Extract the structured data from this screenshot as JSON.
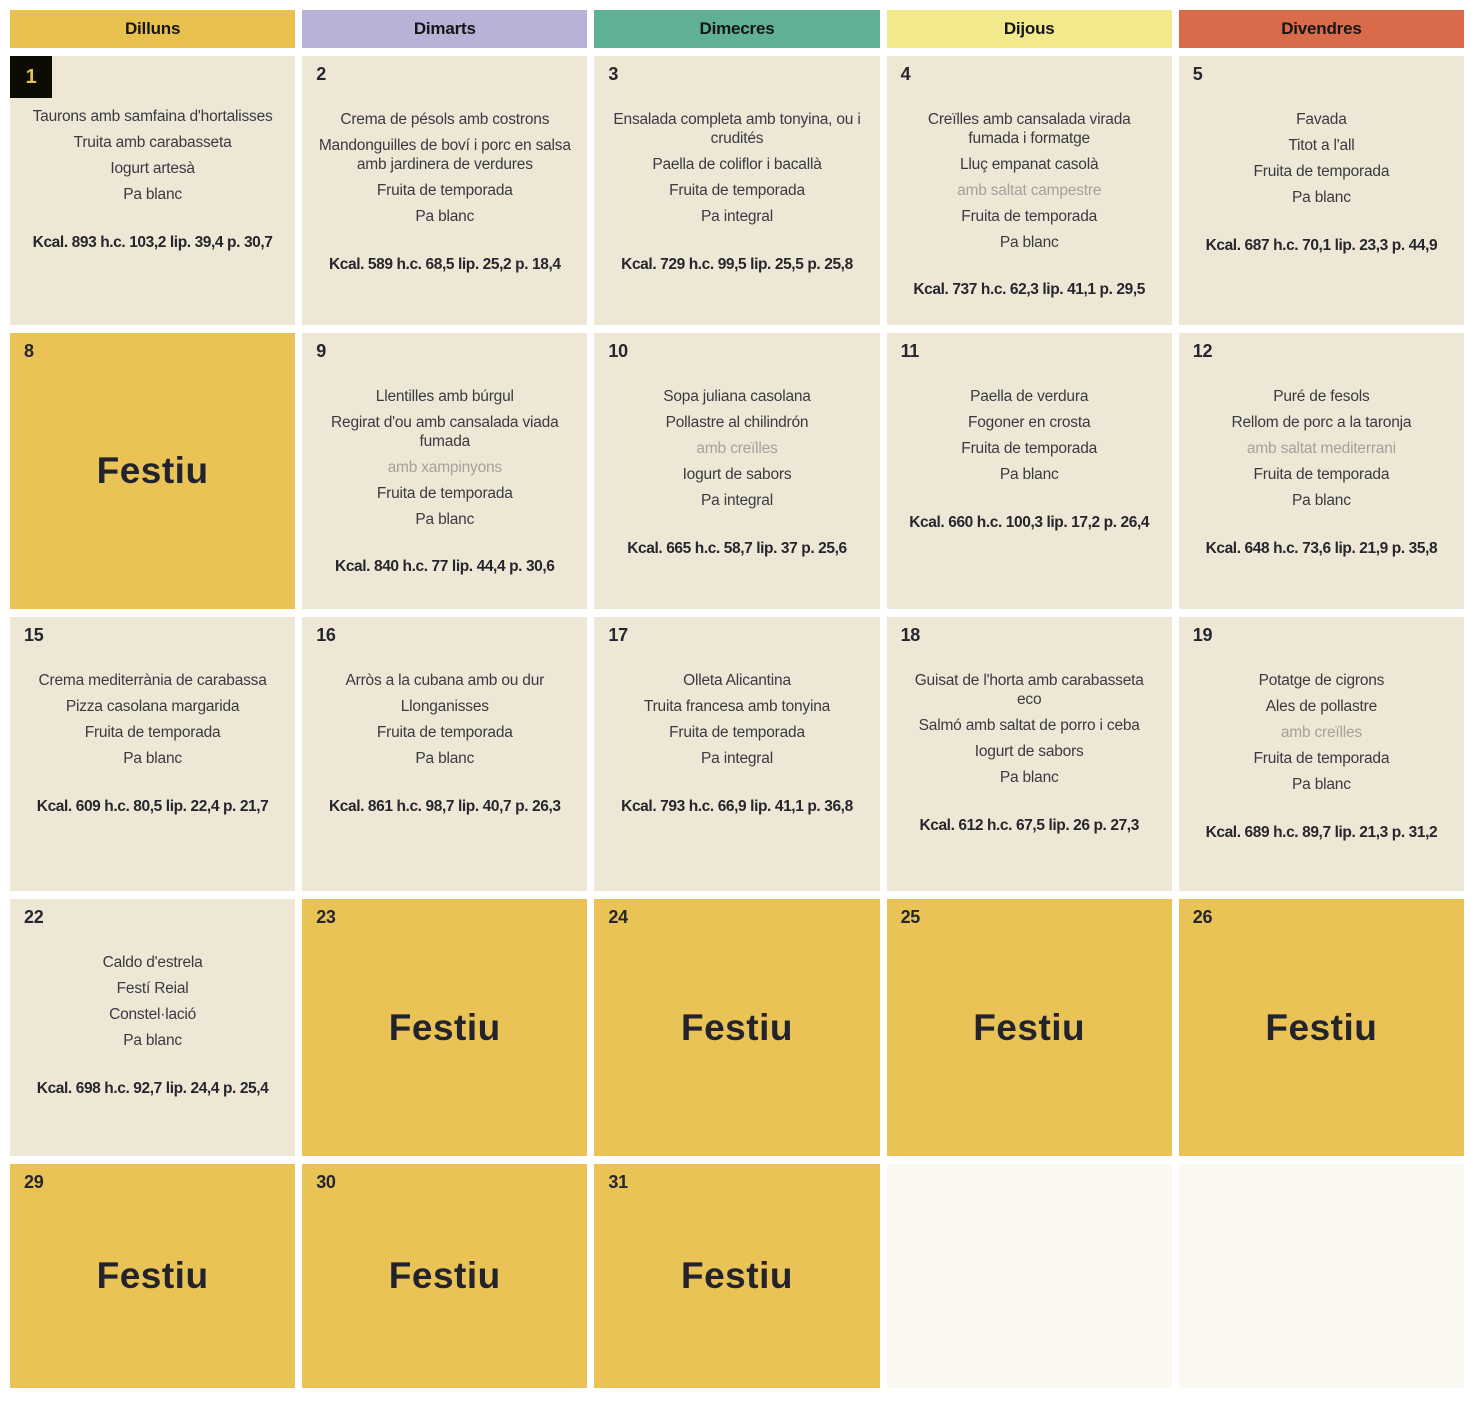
{
  "festiu_label": "Festiu",
  "colors": {
    "menu_cell_bg": "#eee7d6",
    "empty_cell_bg": "#faf8f1",
    "festiu_cell_bg": "#e9c355",
    "badge_bg": "#0c0c04",
    "badge_fg": "#e8c04e",
    "muted_text": "#a5a19b"
  },
  "weekdays": [
    {
      "id": "dilluns",
      "label": "Dilluns",
      "color": "#e8c04e"
    },
    {
      "id": "dimarts",
      "label": "Dimarts",
      "color": "#b9b2d8"
    },
    {
      "id": "dimecres",
      "label": "Dimecres",
      "color": "#5fb094"
    },
    {
      "id": "dijous",
      "label": "Dijous",
      "color": "#f2e88c"
    },
    {
      "id": "divendres",
      "label": "Divendres",
      "color": "#d96b4b"
    }
  ],
  "weeks": [
    [
      {
        "type": "menu",
        "day": "1",
        "day_badge": true,
        "items": [
          {
            "text": "Taurons amb samfaina d'hortalisses",
            "muted": false
          },
          {
            "text": "Truita amb carabasseta",
            "muted": false
          },
          {
            "text": "Iogurt artesà",
            "muted": false
          },
          {
            "text": "Pa blanc",
            "muted": false
          }
        ],
        "kcal": "Kcal. 893 h.c. 103,2 lip. 39,4 p. 30,7"
      },
      {
        "type": "menu",
        "day": "2",
        "day_badge": false,
        "items": [
          {
            "text": "Crema de pésols amb costrons",
            "muted": false
          },
          {
            "text": "Mandonguilles de boví i porc en salsa amb jardinera de verdures",
            "muted": false
          },
          {
            "text": "Fruita de temporada",
            "muted": false
          },
          {
            "text": "Pa blanc",
            "muted": false
          }
        ],
        "kcal": "Kcal. 589 h.c. 68,5 lip. 25,2 p. 18,4"
      },
      {
        "type": "menu",
        "day": "3",
        "day_badge": false,
        "items": [
          {
            "text": "Ensalada completa amb tonyina, ou i crudités",
            "muted": false
          },
          {
            "text": "Paella de coliflor i bacallà",
            "muted": false
          },
          {
            "text": "Fruita de temporada",
            "muted": false
          },
          {
            "text": "Pa integral",
            "muted": false
          }
        ],
        "kcal": "Kcal. 729 h.c. 99,5 lip. 25,5 p. 25,8"
      },
      {
        "type": "menu",
        "day": "4",
        "day_badge": false,
        "items": [
          {
            "text": "Creïlles amb cansalada virada fumada i formatge",
            "muted": false
          },
          {
            "text": "Lluç empanat casolà",
            "muted": false
          },
          {
            "text": "amb saltat campestre",
            "muted": true
          },
          {
            "text": "Fruita de temporada",
            "muted": false
          },
          {
            "text": "Pa blanc",
            "muted": false
          }
        ],
        "kcal": "Kcal. 737 h.c. 62,3 lip. 41,1 p. 29,5"
      },
      {
        "type": "menu",
        "day": "5",
        "day_badge": false,
        "items": [
          {
            "text": "Favada",
            "muted": false
          },
          {
            "text": "Titot a l'all",
            "muted": false
          },
          {
            "text": "Fruita de temporada",
            "muted": false
          },
          {
            "text": "Pa blanc",
            "muted": false
          }
        ],
        "kcal": "Kcal. 687 h.c. 70,1 lip. 23,3 p. 44,9"
      }
    ],
    [
      {
        "type": "festiu",
        "day": "8"
      },
      {
        "type": "menu",
        "day": "9",
        "day_badge": false,
        "items": [
          {
            "text": "Llentilles amb búrgul",
            "muted": false
          },
          {
            "text": "Regirat d'ou amb cansalada viada fumada",
            "muted": false
          },
          {
            "text": "amb xampinyons",
            "muted": true
          },
          {
            "text": "Fruita de temporada",
            "muted": false
          },
          {
            "text": "Pa blanc",
            "muted": false
          }
        ],
        "kcal": "Kcal. 840 h.c. 77 lip. 44,4 p. 30,6"
      },
      {
        "type": "menu",
        "day": "10",
        "day_badge": false,
        "items": [
          {
            "text": "Sopa juliana casolana",
            "muted": false
          },
          {
            "text": "Pollastre al chilindrón",
            "muted": false
          },
          {
            "text": "amb creïlles",
            "muted": true
          },
          {
            "text": "Iogurt de sabors",
            "muted": false
          },
          {
            "text": "Pa integral",
            "muted": false
          }
        ],
        "kcal": "Kcal. 665 h.c. 58,7 lip. 37 p. 25,6"
      },
      {
        "type": "menu",
        "day": "11",
        "day_badge": false,
        "items": [
          {
            "text": "Paella de verdura",
            "muted": false
          },
          {
            "text": "Fogoner en crosta",
            "muted": false
          },
          {
            "text": "Fruita de temporada",
            "muted": false
          },
          {
            "text": "Pa blanc",
            "muted": false
          }
        ],
        "kcal": "Kcal. 660 h.c. 100,3 lip. 17,2 p. 26,4"
      },
      {
        "type": "menu",
        "day": "12",
        "day_badge": false,
        "items": [
          {
            "text": "Puré de fesols",
            "muted": false
          },
          {
            "text": "Rellom de porc a la taronja",
            "muted": false
          },
          {
            "text": "amb saltat mediterrani",
            "muted": true
          },
          {
            "text": "Fruita de temporada",
            "muted": false
          },
          {
            "text": "Pa blanc",
            "muted": false
          }
        ],
        "kcal": "Kcal. 648 h.c. 73,6 lip. 21,9 p. 35,8"
      }
    ],
    [
      {
        "type": "menu",
        "day": "15",
        "day_badge": false,
        "items": [
          {
            "text": "Crema mediterrània de carabassa",
            "muted": false
          },
          {
            "text": "Pizza casolana margarida",
            "muted": false
          },
          {
            "text": "Fruita de temporada",
            "muted": false
          },
          {
            "text": "Pa blanc",
            "muted": false
          }
        ],
        "kcal": "Kcal. 609 h.c. 80,5 lip. 22,4 p. 21,7"
      },
      {
        "type": "menu",
        "day": "16",
        "day_badge": false,
        "items": [
          {
            "text": "Arròs a la cubana amb ou dur",
            "muted": false
          },
          {
            "text": "Llonganisses",
            "muted": false
          },
          {
            "text": "Fruita de temporada",
            "muted": false
          },
          {
            "text": "Pa blanc",
            "muted": false
          }
        ],
        "kcal": "Kcal. 861 h.c. 98,7 lip. 40,7 p. 26,3"
      },
      {
        "type": "menu",
        "day": "17",
        "day_badge": false,
        "items": [
          {
            "text": "Olleta Alicantina",
            "muted": false
          },
          {
            "text": "Truita francesa amb tonyina",
            "muted": false
          },
          {
            "text": "Fruita de temporada",
            "muted": false
          },
          {
            "text": "Pa integral",
            "muted": false
          }
        ],
        "kcal": "Kcal. 793 h.c. 66,9 lip. 41,1 p. 36,8"
      },
      {
        "type": "menu",
        "day": "18",
        "day_badge": false,
        "items": [
          {
            "text": "Guisat de l'horta amb carabasseta eco",
            "muted": false
          },
          {
            "text": "Salmó amb saltat de porro i ceba",
            "muted": false
          },
          {
            "text": "Iogurt de sabors",
            "muted": false
          },
          {
            "text": "Pa blanc",
            "muted": false
          }
        ],
        "kcal": "Kcal. 612 h.c. 67,5 lip. 26 p. 27,3"
      },
      {
        "type": "menu",
        "day": "19",
        "day_badge": false,
        "items": [
          {
            "text": "Potatge de cigrons",
            "muted": false
          },
          {
            "text": "Ales de pollastre",
            "muted": false
          },
          {
            "text": "amb creïlles",
            "muted": true
          },
          {
            "text": "Fruita de temporada",
            "muted": false
          },
          {
            "text": "Pa blanc",
            "muted": false
          }
        ],
        "kcal": "Kcal. 689 h.c. 89,7 lip. 21,3 p. 31,2"
      }
    ],
    [
      {
        "type": "menu",
        "day": "22",
        "day_badge": false,
        "items": [
          {
            "text": "Caldo d'estrela",
            "muted": false
          },
          {
            "text": "Festí Reial",
            "muted": false
          },
          {
            "text": "Constel·lació",
            "muted": false
          },
          {
            "text": "Pa blanc",
            "muted": false
          }
        ],
        "kcal": "Kcal. 698 h.c. 92,7 lip. 24,4 p. 25,4"
      },
      {
        "type": "festiu",
        "day": "23"
      },
      {
        "type": "festiu",
        "day": "24"
      },
      {
        "type": "festiu",
        "day": "25"
      },
      {
        "type": "festiu",
        "day": "26"
      }
    ],
    [
      {
        "type": "festiu",
        "day": "29"
      },
      {
        "type": "festiu",
        "day": "30"
      },
      {
        "type": "festiu",
        "day": "31"
      },
      {
        "type": "empty"
      },
      {
        "type": "empty"
      }
    ]
  ]
}
